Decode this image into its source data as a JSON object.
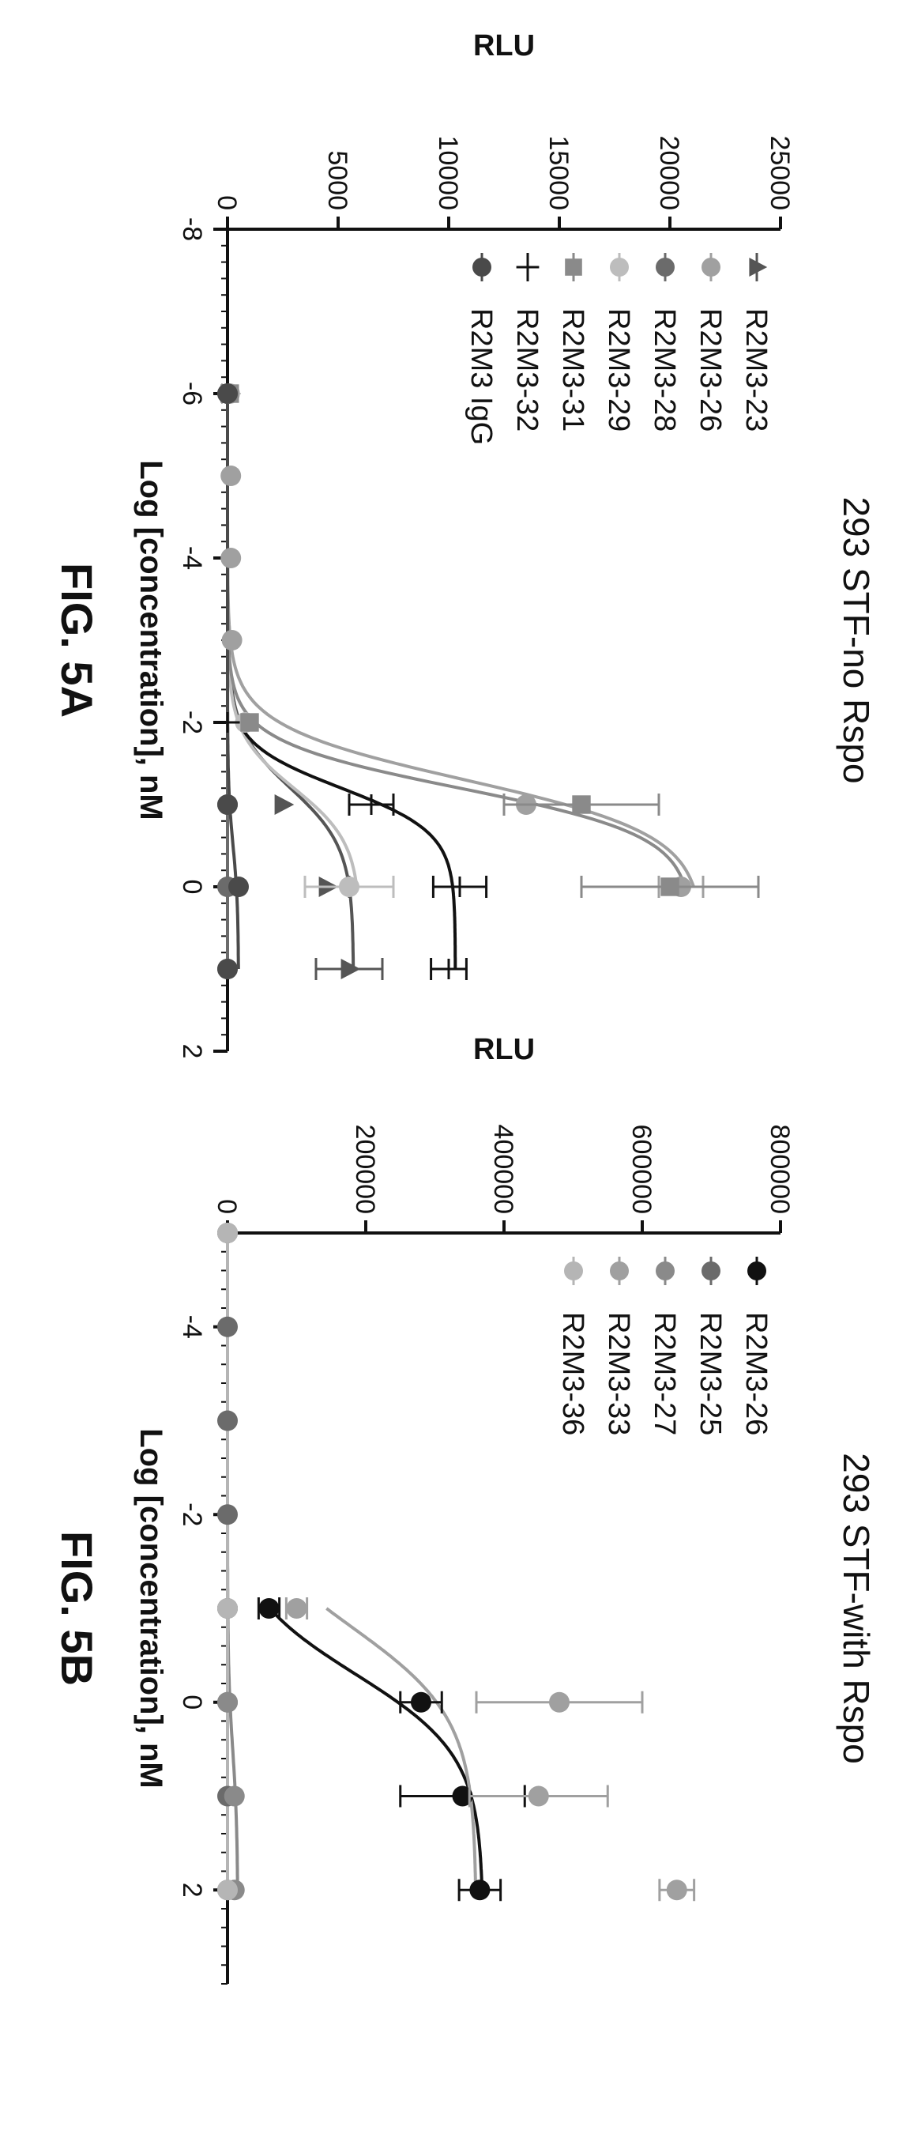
{
  "chart_data": [
    {
      "type": "scatter",
      "title": "293 STF-no Rspo",
      "figure_label": "FIG. 5A",
      "xlabel": "Log [concentration], nM",
      "ylabel": "RLU",
      "xlim": [
        -8,
        2
      ],
      "ylim": [
        0,
        25000
      ],
      "xticks": [
        -8,
        -6,
        -4,
        -2,
        0,
        2
      ],
      "yticks": [
        0,
        5000,
        10000,
        15000,
        20000,
        25000
      ],
      "legend_position": "top-left",
      "series": [
        {
          "name": "R2M3-23",
          "marker": "triangle",
          "color": "#555555",
          "points": [
            {
              "x": -6,
              "y": 100,
              "err": 0
            },
            {
              "x": -1,
              "y": 2500,
              "err": 0
            },
            {
              "x": 0,
              "y": 4500,
              "err": 1000
            },
            {
              "x": 1,
              "y": 5500,
              "err": 1500
            }
          ],
          "curve": {
            "bottom": 0,
            "top": 5700,
            "logec50": -1.2,
            "hill": 1.2
          }
        },
        {
          "name": "R2M3-26",
          "marker": "circle",
          "color": "#a0a0a0",
          "points": [
            {
              "x": -6,
              "y": 100,
              "err": 0
            },
            {
              "x": -5,
              "y": 150,
              "err": 0
            },
            {
              "x": -4,
              "y": 150,
              "err": 0
            },
            {
              "x": -3,
              "y": 200,
              "err": 0
            },
            {
              "x": -1,
              "y": 13500,
              "err": 0
            },
            {
              "x": 0,
              "y": 20500,
              "err": 1000
            }
          ],
          "curve": {
            "bottom": 0,
            "top": 21500,
            "logec50": -1.3,
            "hill": 1.3
          }
        },
        {
          "name": "R2M3-28",
          "marker": "circle",
          "color": "#6b6b6b",
          "points": [
            {
              "x": -6,
              "y": 0,
              "err": 0
            },
            {
              "x": -1,
              "y": 0,
              "err": 0
            },
            {
              "x": 0,
              "y": 0,
              "err": 0
            },
            {
              "x": 1,
              "y": 0,
              "err": 0
            }
          ],
          "curve": {
            "bottom": 0,
            "top": 0,
            "logec50": 0,
            "hill": 1
          }
        },
        {
          "name": "R2M3-29",
          "marker": "circle",
          "color": "#bdbdbd",
          "points": [
            {
              "x": -6,
              "y": 100,
              "err": 0
            },
            {
              "x": -2,
              "y": 800,
              "err": 0
            },
            {
              "x": 0,
              "y": 5500,
              "err": 2000
            }
          ],
          "curve": {
            "bottom": 0,
            "top": 6000,
            "logec50": -1.2,
            "hill": 1.3
          }
        },
        {
          "name": "R2M3-31",
          "marker": "square",
          "color": "#8a8a8a",
          "points": [
            {
              "x": -6,
              "y": 100,
              "err": 0
            },
            {
              "x": -2,
              "y": 1000,
              "err": 0
            },
            {
              "x": -1,
              "y": 16000,
              "err": 3500
            },
            {
              "x": 0,
              "y": 20000,
              "err": 4000
            }
          ],
          "curve": {
            "bottom": 0,
            "top": 21000,
            "logec50": -1.2,
            "hill": 1.5
          }
        },
        {
          "name": "R2M3-32",
          "marker": "plus",
          "color": "#111111",
          "points": [
            {
              "x": -2,
              "y": 0,
              "err": 0
            },
            {
              "x": -1,
              "y": 6500,
              "err": 1000
            },
            {
              "x": 0,
              "y": 10500,
              "err": 1200
            },
            {
              "x": 1,
              "y": 10000,
              "err": 800
            }
          ],
          "curve": {
            "bottom": 0,
            "top": 10300,
            "logec50": -1.2,
            "hill": 1.6
          }
        },
        {
          "name": "R2M3 IgG",
          "marker": "circle",
          "color": "#4a4a4a",
          "points": [
            {
              "x": -6,
              "y": 0,
              "err": 0
            },
            {
              "x": -1,
              "y": 0,
              "err": 0
            },
            {
              "x": 0,
              "y": 500,
              "err": 0
            },
            {
              "x": 1,
              "y": 0,
              "err": 0
            }
          ],
          "curve": {
            "bottom": 0,
            "top": 500,
            "logec50": -0.5,
            "hill": 1.2
          }
        }
      ]
    },
    {
      "type": "scatter",
      "title": "293 STF-with Rspo",
      "figure_label": "FIG. 5B",
      "xlabel": "Log [concentration], nM",
      "ylabel": "RLU",
      "xlim": [
        -5,
        3
      ],
      "ylim": [
        0,
        800000
      ],
      "xticks": [
        -4,
        -2,
        0,
        2
      ],
      "yticks": [
        0,
        200000,
        400000,
        600000,
        800000
      ],
      "legend_position": "top-left",
      "series": [
        {
          "name": "R2M3-26",
          "marker": "circle",
          "color": "#111111",
          "points": [
            {
              "x": -1,
              "y": 60000,
              "err": 15000
            },
            {
              "x": 0,
              "y": 280000,
              "err": 30000
            },
            {
              "x": 1,
              "y": 340000,
              "err": 90000
            },
            {
              "x": 2,
              "y": 365000,
              "err": 30000
            }
          ],
          "curve": {
            "bottom": 0,
            "top": 370000,
            "logec50": -0.3,
            "hill": 1.0
          }
        },
        {
          "name": "R2M3-25",
          "marker": "circle",
          "color": "#6b6b6b",
          "points": [
            {
              "x": -5,
              "y": 0,
              "err": 0
            },
            {
              "x": -4,
              "y": 0,
              "err": 0
            },
            {
              "x": -3,
              "y": 0,
              "err": 0
            },
            {
              "x": -2,
              "y": 0,
              "err": 0
            },
            {
              "x": -1,
              "y": 0,
              "err": 0
            },
            {
              "x": 0,
              "y": 0,
              "err": 0
            },
            {
              "x": 1,
              "y": 0,
              "err": 0
            },
            {
              "x": 2,
              "y": 0,
              "err": 0
            }
          ],
          "curve": {
            "bottom": 0,
            "top": 0,
            "logec50": 0,
            "hill": 1
          }
        },
        {
          "name": "R2M3-27",
          "marker": "circle",
          "color": "#8a8a8a",
          "points": [
            {
              "x": -5,
              "y": 0,
              "err": 0
            },
            {
              "x": -1,
              "y": 0,
              "err": 0
            },
            {
              "x": 0,
              "y": 0,
              "err": 0
            },
            {
              "x": 1,
              "y": 10000,
              "err": 0
            },
            {
              "x": 2,
              "y": 10000,
              "err": 0
            }
          ],
          "curve": {
            "bottom": 0,
            "top": 15000,
            "logec50": 0.5,
            "hill": 1
          }
        },
        {
          "name": "R2M3-33",
          "marker": "circle",
          "color": "#a0a0a0",
          "points": [
            {
              "x": -1,
              "y": 100000,
              "err": 15000
            },
            {
              "x": 0,
              "y": 480000,
              "err": 120000
            },
            {
              "x": 1,
              "y": 450000,
              "err": 100000
            },
            {
              "x": 2,
              "y": 650000,
              "err": 25000
            }
          ],
          "curve": {
            "bottom": 0,
            "top": 360000,
            "logec50": -0.8,
            "hill": 0.9
          }
        },
        {
          "name": "R2M3-36",
          "marker": "circle",
          "color": "#b5b5b5",
          "points": [
            {
              "x": -5,
              "y": 0,
              "err": 0
            },
            {
              "x": -1,
              "y": 0,
              "err": 0
            },
            {
              "x": 2,
              "y": 0,
              "err": 0
            }
          ],
          "curve": {
            "bottom": 0,
            "top": 0,
            "logec50": 0,
            "hill": 1
          }
        }
      ]
    }
  ]
}
